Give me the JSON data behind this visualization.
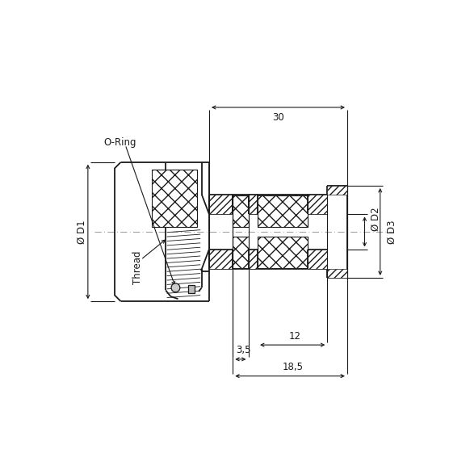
{
  "bg_color": "#ffffff",
  "line_color": "#1a1a1a",
  "text_color": "#1a1a1a",
  "dim_color": "#1a1a1a",
  "lw": 1.3,
  "tlw": 0.7,
  "dlw": 0.8,
  "dfs": 8.5,
  "dim_18_5": "18,5",
  "dim_3_5": "3,5",
  "dim_12": "12",
  "dim_30": "30",
  "label_D1": "Ø D1",
  "label_Thread": "Thread",
  "label_D2": "Ø D2",
  "label_D3": "Ø D3",
  "label_oring": "O-Ring"
}
